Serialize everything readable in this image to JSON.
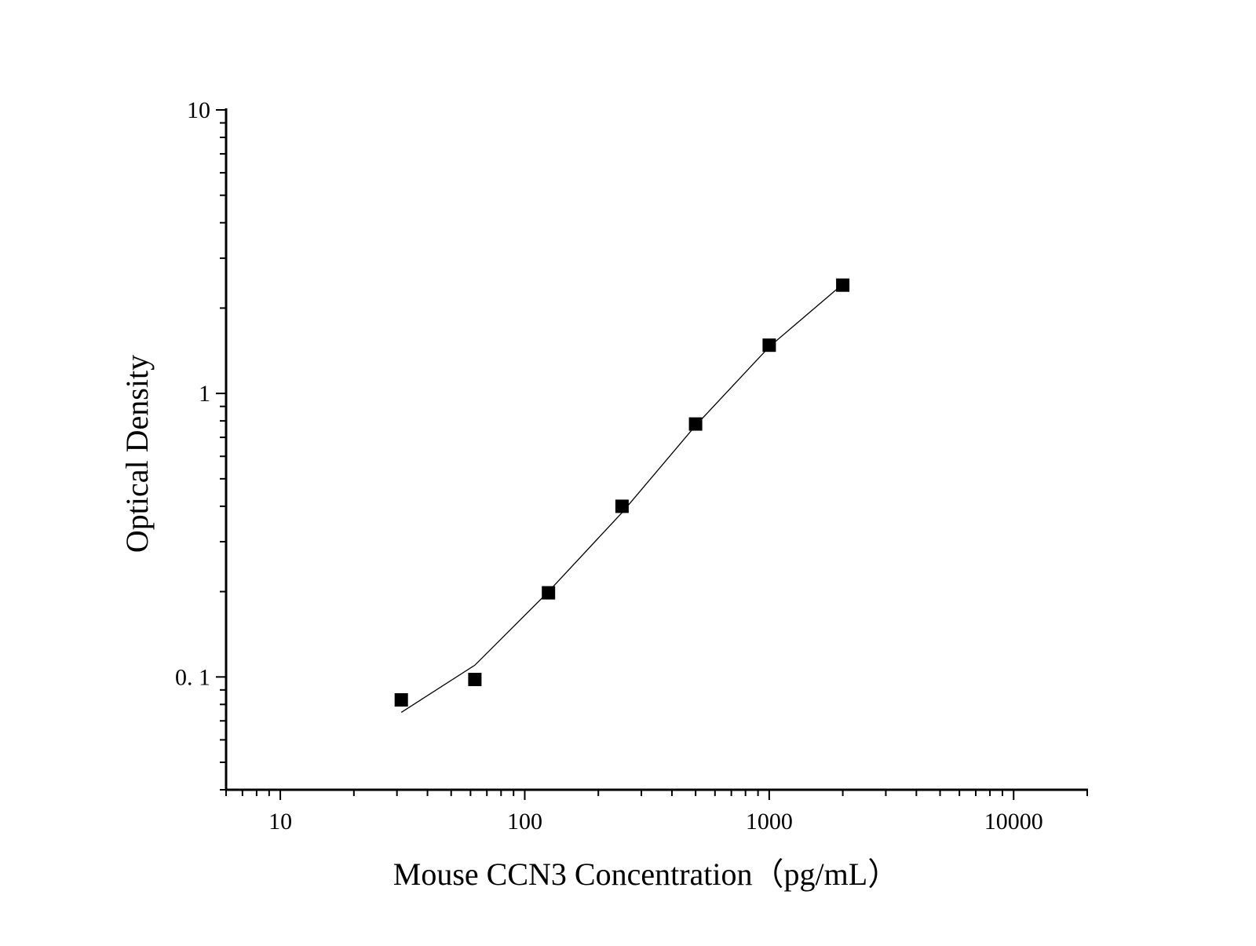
{
  "chart_data": {
    "type": "scatter",
    "title": "",
    "xlabel": "Mouse CCN3 Concentration（pg/mL）",
    "ylabel": "Optical Density",
    "x_scale": "log",
    "y_scale": "log",
    "xlim": [
      6,
      20000
    ],
    "ylim": [
      0.04,
      10
    ],
    "x_ticks": [
      {
        "value": 10,
        "label": "10"
      },
      {
        "value": 100,
        "label": "100"
      },
      {
        "value": 1000,
        "label": "1000"
      },
      {
        "value": 10000,
        "label": "10000"
      }
    ],
    "y_ticks": [
      {
        "value": 0.1,
        "label": "0. 1"
      },
      {
        "value": 1,
        "label": "1"
      },
      {
        "value": 10,
        "label": "10"
      }
    ],
    "grid": false,
    "legend": "none",
    "series": [
      {
        "type": "scatter",
        "marker": "square",
        "color": "#000000",
        "x": [
          31.25,
          62.5,
          125,
          250,
          500,
          1000,
          2000
        ],
        "y": [
          0.083,
          0.098,
          0.198,
          0.4,
          0.78,
          1.48,
          2.41
        ]
      },
      {
        "type": "line",
        "color": "#000000",
        "x": [
          31.25,
          62.5,
          125,
          250,
          500,
          1000,
          2000
        ],
        "y": [
          0.075,
          0.11,
          0.2,
          0.38,
          0.77,
          1.46,
          2.43
        ]
      }
    ]
  }
}
